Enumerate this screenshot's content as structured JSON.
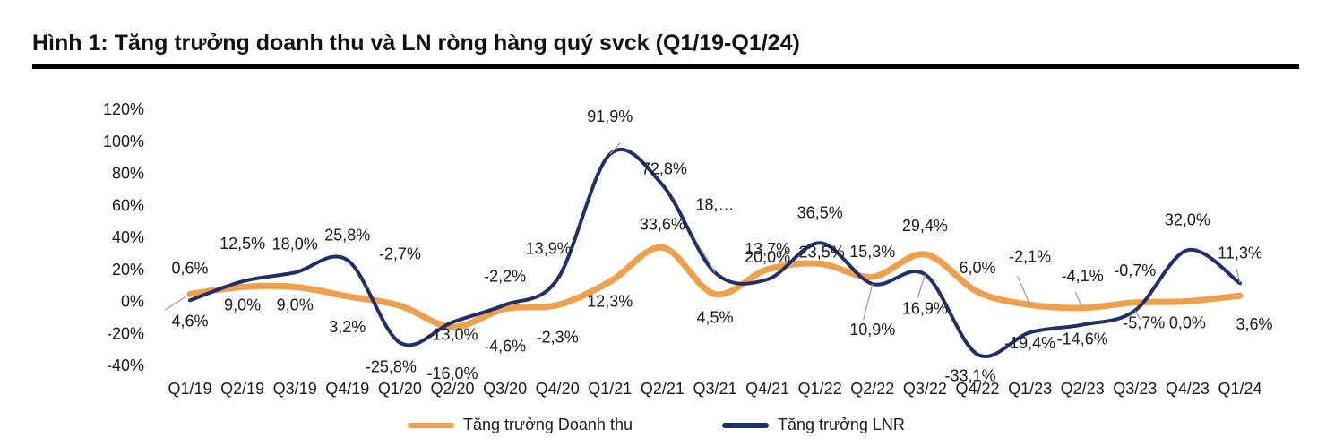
{
  "figure": {
    "title": "Hình 1: Tăng trưởng doanh thu và LN ròng hàng quý svck (Q1/19-Q1/24)"
  },
  "chart_data": {
    "type": "line",
    "title": "",
    "xlabel": "",
    "ylabel": "",
    "categories": [
      "Q1/19",
      "Q2/19",
      "Q3/19",
      "Q4/19",
      "Q1/20",
      "Q2/20",
      "Q3/20",
      "Q4/20",
      "Q1/21",
      "Q2/21",
      "Q3/21",
      "Q4/21",
      "Q1/22",
      "Q2/22",
      "Q3/22",
      "Q4/22",
      "Q1/23",
      "Q2/23",
      "Q3/23",
      "Q4/23",
      "Q1/24"
    ],
    "ylim": [
      -40,
      120
    ],
    "yticks": [
      -40,
      -20,
      0,
      20,
      40,
      60,
      80,
      100,
      120
    ],
    "ytick_labels": [
      "-40%",
      "-20%",
      "0%",
      "20%",
      "40%",
      "60%",
      "80%",
      "100%",
      "120%"
    ],
    "grid": false,
    "legend_position": "bottom",
    "series": [
      {
        "name": "Tăng trưởng Doanh thu",
        "color": "#F0A04B",
        "values": [
          4.6,
          9.0,
          9.0,
          3.2,
          -2.7,
          -16.0,
          -4.6,
          -2.3,
          12.3,
          33.6,
          4.5,
          20.0,
          23.5,
          15.3,
          29.4,
          6.0,
          -2.1,
          -4.1,
          -0.7,
          0.0,
          3.6
        ],
        "labels": [
          "4,6%",
          "9,0%",
          "9,0%",
          "3,2%",
          "-2,7%",
          "-16,0%",
          "-4,6%",
          "-2,3%",
          "12,3%",
          "33,6%",
          "4,5%",
          "20,0%",
          "23,5%",
          "15,3%",
          "29,4%",
          "6,0%",
          "-2,1%",
          "-4,1%",
          "-0,7%",
          "0,0%",
          "3,6%"
        ]
      },
      {
        "name": "Tăng trưởng LNR",
        "color": "#1F2F6B",
        "values": [
          0.6,
          12.5,
          18.0,
          25.8,
          -25.8,
          -13.0,
          -2.2,
          13.9,
          91.9,
          72.8,
          18.0,
          13.7,
          36.5,
          10.9,
          16.9,
          -33.1,
          -19.4,
          -14.6,
          -5.7,
          32.0,
          11.3
        ],
        "labels": [
          "0,6%",
          "12,5%",
          "18,0%",
          "25,8%",
          "-25,8%",
          "-13,0%",
          "-2,2%",
          "13,9%",
          "91,9%",
          "72,8%",
          "18,…",
          "13,7%",
          "36,5%",
          "10,9%",
          "16,9%",
          "-33,1%",
          "-19,4%",
          "-14,6%",
          "-5,7%",
          "32,0%",
          "11,3%"
        ]
      }
    ]
  }
}
